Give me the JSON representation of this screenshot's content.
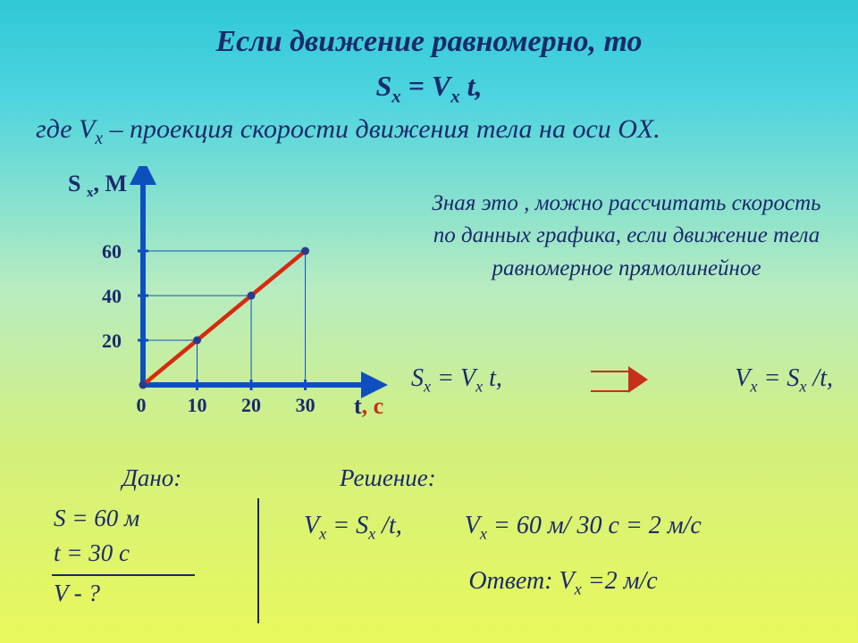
{
  "title": "Если движение равномерно, то",
  "main_formula_html": "S<sub>x</sub> = V<sub>x</sub> t,",
  "subtitle_html": "где V<sub>x</sub> – проекция скорости движения тела на оси OX.",
  "right_paragraph": "Зная это , можно рассчитать скорость по данных графика, если движение тела равномерное прямолинейное",
  "formula_left_html": "S<sub>x</sub> = V<sub>x</sub> t,",
  "formula_right_html": "V<sub>x</sub> = S<sub>x</sub> /t,",
  "chart": {
    "type": "line",
    "y_label": "S ",
    "y_label_sub": "x",
    "y_unit": ", М",
    "x_label": "t",
    "x_unit": ", с",
    "x_ticks": [
      "0",
      "10",
      "20",
      "30"
    ],
    "y_ticks": [
      "20",
      "40",
      "60"
    ],
    "points_t": [
      0,
      10,
      20,
      30
    ],
    "points_s": [
      0,
      20,
      40,
      60
    ],
    "xlim": [
      0,
      38
    ],
    "ylim": [
      0,
      80
    ],
    "axis_color": "#0e4fbf",
    "line_color": "#d62a0e",
    "marker_fill": "#2a3a8c",
    "grid_color": "#0e4fbf",
    "tick_font_size": 22,
    "axis_label_font_size": 26,
    "line_width": 4.5,
    "axis_width": 6,
    "marker_radius": 4.5
  },
  "given": {
    "heading": "Дано:",
    "lines": [
      "S = 60 м",
      "t  = 30  с"
    ],
    "question": "V  - ?"
  },
  "solution": {
    "heading": "Решение:",
    "step1_html": "V<sub>x</sub> = S<sub>x</sub> /t,",
    "step2_html": "V<sub>x</sub> = 60 м/ 30 с = 2 м/с",
    "answer_html": "Ответ: V<sub>x</sub> =2 м/с"
  }
}
